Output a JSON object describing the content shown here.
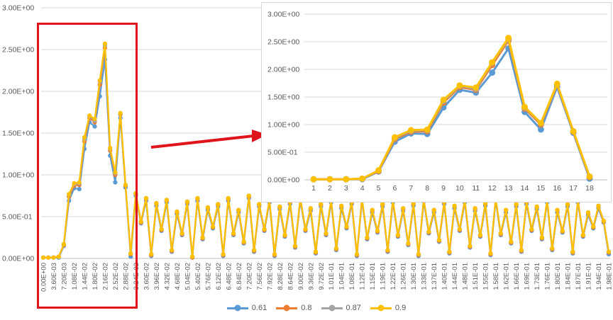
{
  "chart_data": {
    "type": "line",
    "title": "",
    "legend_position": "bottom",
    "grid": "horizontal",
    "y_axis": {
      "tick_labels": [
        "0.00E+00",
        "5.00E-01",
        "1.00E+00",
        "1.50E+00",
        "2.00E+00",
        "2.50E+00",
        "3.00E+00"
      ],
      "min": 0,
      "max": 3
    },
    "main_chart": {
      "x_tick_labels": [
        "0.00E+00",
        "3.60E-03",
        "7.20E-03",
        "1.08E-02",
        "1.44E-02",
        "1.80E-02",
        "2.16E-02",
        "2.52E-02",
        "2.88E-02",
        "3.24E-02",
        "3.60E-02",
        "3.96E-02",
        "4.32E-02",
        "4.68E-02",
        "5.04E-02",
        "5.40E-02",
        "5.76E-02",
        "6.12E-02",
        "6.48E-02",
        "6.84E-02",
        "7.20E-02",
        "7.56E-02",
        "7.92E-02",
        "8.28E-02",
        "8.64E-02",
        "9.00E-02",
        "9.36E-02",
        "9.72E-02",
        "1.01E-01",
        "1.04E-01",
        "1.08E-01",
        "1.12E-01",
        "1.15E-01",
        "1.19E-01",
        "1.22E-01",
        "1.26E-01",
        "1.30E-01",
        "1.33E-01",
        "1.37E-01",
        "1.40E-01",
        "1.44E-01",
        "1.48E-01",
        "1.51E-01",
        "1.55E-01",
        "1.58E-01",
        "1.62E-01",
        "1.66E-01",
        "1.69E-01",
        "1.73E-01",
        "1.76E-01",
        "1.80E-01",
        "1.84E-01",
        "1.87E-01",
        "1.91E-01",
        "1.94E-01",
        "1.98E-01"
      ],
      "x_labels_every_n_points": 2,
      "series": [
        {
          "name": "0.61",
          "color": "#5B9BD5",
          "values": [
            0.01,
            0.01,
            0.01,
            0.01,
            0.15,
            0.69,
            0.84,
            0.83,
            1.31,
            1.63,
            1.58,
            1.94,
            2.38,
            1.23,
            0.91,
            1.68,
            0.85,
            0.02,
            0.75,
            0.42,
            0.69,
            0.03,
            0.63,
            0.33,
            0.67,
            0.08,
            0.53,
            0.28,
            0.65,
            0.01,
            0.69,
            0.23,
            0.58,
            0.36,
            0.62,
            0.03,
            0.69,
            0.28,
            0.55,
            0.18,
            0.72,
            0.08,
            0.62,
            0.33,
            0.67,
            0.03,
            0.59,
            0.26,
            0.65,
            0.13,
            0.69,
            0.33,
            0.57,
            0.06,
            0.62,
            0.28,
            0.67,
            0.1,
            0.6,
            0.36,
            0.65,
            0.03,
            0.69,
            0.23,
            0.55,
            0.31,
            0.62,
            0.08,
            0.67,
            0.26,
            0.57,
            0.16,
            0.63,
            0.03,
            0.68,
            0.3,
            0.55,
            0.2,
            0.65,
            0.06,
            0.6,
            0.33,
            0.67,
            0.13,
            0.57,
            0.26,
            0.63,
            0.04,
            0.69,
            0.28,
            0.55,
            0.18,
            0.62,
            0.08,
            0.65,
            0.33,
            0.59,
            0.23,
            0.67,
            0.1,
            0.55,
            0.31,
            0.62,
            0.06,
            0.67,
            0.26,
            0.52,
            0.36,
            0.6,
            0.43,
            0.05
          ]
        },
        {
          "name": "0.8",
          "color": "#ED7D31",
          "values": [
            0.01,
            0.01,
            0.01,
            0.02,
            0.16,
            0.74,
            0.87,
            0.88,
            1.4,
            1.68,
            1.63,
            2.08,
            2.52,
            1.29,
            1.0,
            1.72,
            0.87,
            0.05,
            0.77,
            0.43,
            0.71,
            0.04,
            0.65,
            0.34,
            0.69,
            0.09,
            0.55,
            0.29,
            0.67,
            0.01,
            0.71,
            0.24,
            0.6,
            0.37,
            0.64,
            0.04,
            0.71,
            0.29,
            0.57,
            0.19,
            0.74,
            0.09,
            0.64,
            0.34,
            0.69,
            0.04,
            0.61,
            0.27,
            0.67,
            0.14,
            0.71,
            0.34,
            0.59,
            0.07,
            0.64,
            0.29,
            0.69,
            0.11,
            0.62,
            0.37,
            0.67,
            0.04,
            0.71,
            0.24,
            0.57,
            0.32,
            0.64,
            0.09,
            0.69,
            0.27,
            0.59,
            0.17,
            0.65,
            0.04,
            0.7,
            0.31,
            0.57,
            0.21,
            0.67,
            0.07,
            0.62,
            0.34,
            0.69,
            0.14,
            0.59,
            0.27,
            0.65,
            0.05,
            0.71,
            0.29,
            0.57,
            0.19,
            0.64,
            0.09,
            0.67,
            0.34,
            0.61,
            0.24,
            0.69,
            0.11,
            0.57,
            0.32,
            0.64,
            0.07,
            0.69,
            0.27,
            0.54,
            0.37,
            0.62,
            0.44,
            0.07
          ]
        },
        {
          "name": "0.87",
          "color": "#A5A5A5",
          "values": [
            0.01,
            0.01,
            0.01,
            0.02,
            0.17,
            0.76,
            0.89,
            0.9,
            1.43,
            1.7,
            1.65,
            2.12,
            2.55,
            1.31,
            1.02,
            1.73,
            0.88,
            0.06,
            0.78,
            0.44,
            0.72,
            0.05,
            0.66,
            0.35,
            0.7,
            0.1,
            0.56,
            0.3,
            0.68,
            0.02,
            0.72,
            0.25,
            0.61,
            0.38,
            0.65,
            0.05,
            0.72,
            0.3,
            0.58,
            0.2,
            0.75,
            0.1,
            0.65,
            0.35,
            0.7,
            0.05,
            0.62,
            0.28,
            0.68,
            0.15,
            0.72,
            0.35,
            0.6,
            0.08,
            0.65,
            0.3,
            0.7,
            0.12,
            0.63,
            0.38,
            0.68,
            0.05,
            0.72,
            0.25,
            0.58,
            0.33,
            0.65,
            0.1,
            0.7,
            0.28,
            0.6,
            0.18,
            0.66,
            0.05,
            0.71,
            0.32,
            0.58,
            0.22,
            0.68,
            0.08,
            0.63,
            0.35,
            0.7,
            0.15,
            0.6,
            0.28,
            0.66,
            0.06,
            0.72,
            0.3,
            0.58,
            0.2,
            0.65,
            0.1,
            0.68,
            0.35,
            0.62,
            0.25,
            0.7,
            0.12,
            0.58,
            0.33,
            0.65,
            0.08,
            0.7,
            0.28,
            0.55,
            0.38,
            0.63,
            0.45,
            0.08
          ]
        },
        {
          "name": "0.9",
          "color": "#FFC000",
          "values": [
            0.01,
            0.01,
            0.01,
            0.02,
            0.17,
            0.77,
            0.9,
            0.91,
            1.45,
            1.71,
            1.67,
            2.13,
            2.57,
            1.32,
            1.03,
            1.74,
            0.88,
            0.06,
            0.78,
            0.44,
            0.72,
            0.05,
            0.66,
            0.35,
            0.7,
            0.1,
            0.56,
            0.3,
            0.68,
            0.02,
            0.72,
            0.25,
            0.61,
            0.38,
            0.65,
            0.05,
            0.72,
            0.3,
            0.58,
            0.2,
            0.75,
            0.1,
            0.65,
            0.35,
            0.7,
            0.05,
            0.62,
            0.28,
            0.68,
            0.15,
            0.72,
            0.35,
            0.6,
            0.08,
            0.65,
            0.3,
            0.7,
            0.12,
            0.63,
            0.38,
            0.68,
            0.05,
            0.72,
            0.25,
            0.58,
            0.33,
            0.65,
            0.1,
            0.7,
            0.28,
            0.6,
            0.18,
            0.66,
            0.05,
            0.71,
            0.32,
            0.58,
            0.22,
            0.68,
            0.08,
            0.63,
            0.35,
            0.7,
            0.15,
            0.6,
            0.28,
            0.66,
            0.06,
            0.72,
            0.3,
            0.58,
            0.2,
            0.65,
            0.1,
            0.68,
            0.35,
            0.62,
            0.25,
            0.7,
            0.12,
            0.58,
            0.33,
            0.65,
            0.08,
            0.7,
            0.28,
            0.55,
            0.38,
            0.63,
            0.45,
            0.08
          ]
        }
      ]
    },
    "inset_chart": {
      "description": "zoomed view of the first 18 data points of the main chart",
      "x_tick_labels": [
        "1",
        "2",
        "3",
        "4",
        "5",
        "6",
        "7",
        "8",
        "9",
        "10",
        "11",
        "12",
        "13",
        "14",
        "15",
        "16",
        "17",
        "18"
      ],
      "uses_first_n_points": 18
    },
    "annotations": {
      "highlight_box_color": "#e0151b",
      "arrow_color": "#e0151b"
    },
    "axis_text_color": "#595959",
    "gridline_color": "#d9d9d9",
    "axisline_color": "#bfbfbf"
  },
  "legend": {
    "entries": [
      {
        "label": "0.61",
        "color": "#5B9BD5"
      },
      {
        "label": "0.8",
        "color": "#ED7D31"
      },
      {
        "label": "0.87",
        "color": "#A5A5A5"
      },
      {
        "label": "0.9",
        "color": "#FFC000"
      }
    ]
  }
}
